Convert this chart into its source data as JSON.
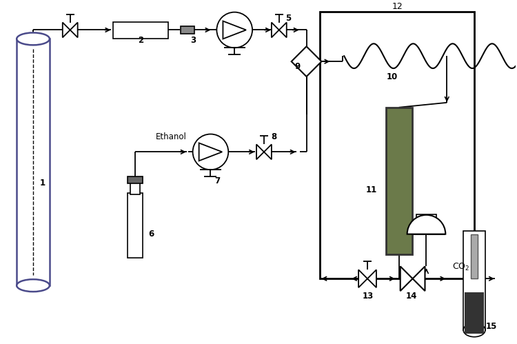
{
  "bg_color": "#ffffff",
  "line_color": "#000000",
  "tank_edge_color": "#4a4a8a",
  "cell_color": "#6b7a4a",
  "cell_edge_color": "#333333"
}
